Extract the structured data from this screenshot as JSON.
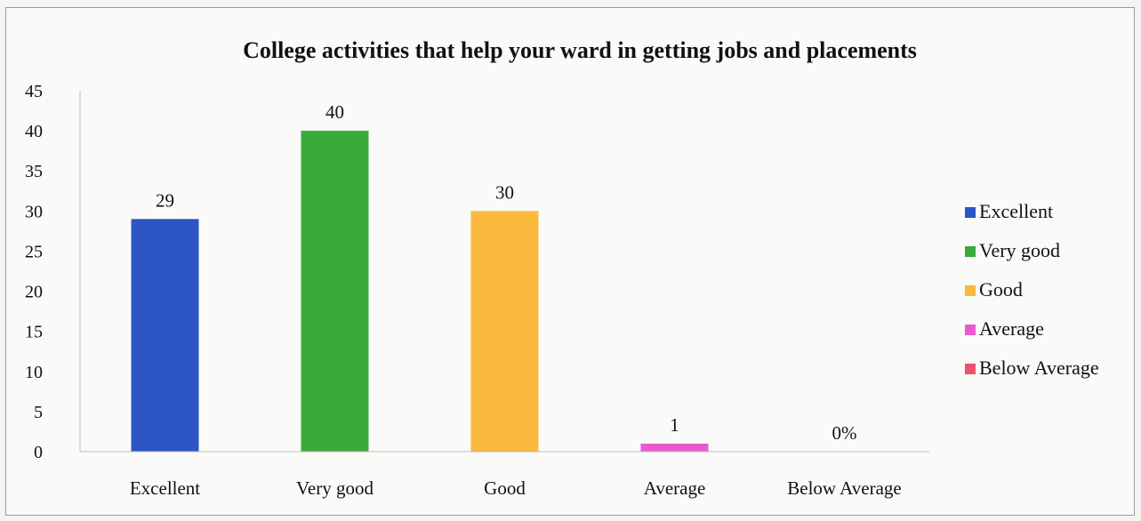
{
  "chart_data": {
    "type": "bar",
    "title": "College activities that help your ward in getting jobs and placements",
    "xlabel": "",
    "ylabel": "",
    "ylim": [
      0,
      45
    ],
    "yticks": [
      0,
      5,
      10,
      15,
      20,
      25,
      30,
      35,
      40,
      45
    ],
    "categories": [
      "Excellent",
      "Very good",
      "Good",
      "Average",
      "Below Average"
    ],
    "values": [
      29,
      40,
      30,
      1,
      0
    ],
    "data_labels": [
      "29",
      "40",
      "30",
      "1",
      "0%"
    ],
    "colors": [
      "#2e55c4",
      "#3aab3a",
      "#f9b93c",
      "#e85ad0",
      "#f0506e"
    ],
    "legend": {
      "placement": "right",
      "entries": [
        "Excellent",
        "Very good",
        "Good",
        "Average",
        "Below Average"
      ]
    },
    "grid": false
  }
}
